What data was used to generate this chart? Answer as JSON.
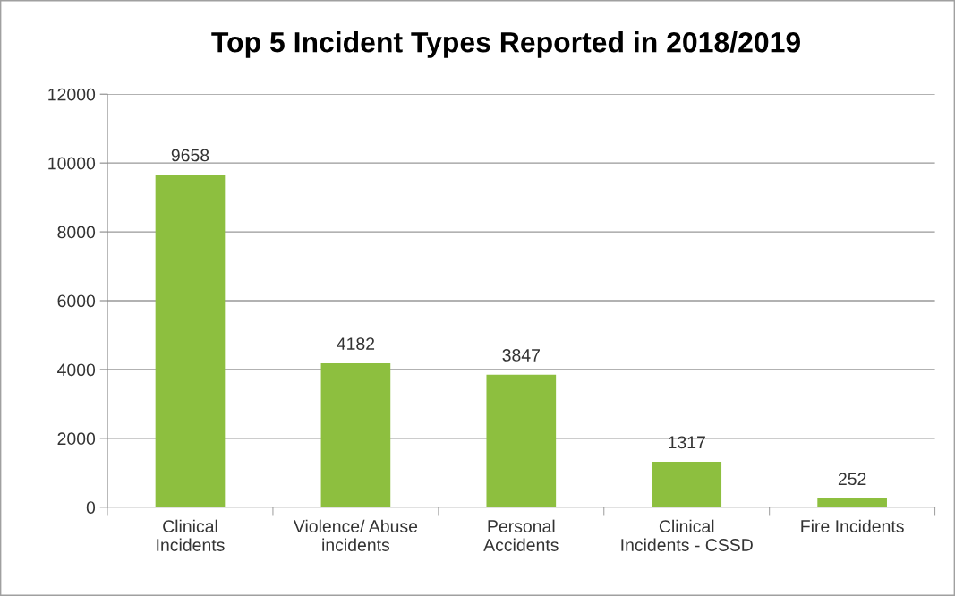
{
  "chart_data": {
    "type": "bar",
    "title": "Top 5 Incident Types Reported in 2018/2019",
    "categories": [
      "Clinical\nIncidents",
      "Violence/ Abuse\nincidents",
      "Personal\nAccidents",
      "Clinical\nIncidents - CSSD",
      "Fire Incidents"
    ],
    "values": [
      9658,
      4182,
      3847,
      1317,
      252
    ],
    "color": "#8dbf3f",
    "ylim": [
      0,
      12000
    ],
    "yticks": [
      0,
      2000,
      4000,
      6000,
      8000,
      10000,
      12000
    ],
    "grid": "y",
    "data_labels": true
  }
}
